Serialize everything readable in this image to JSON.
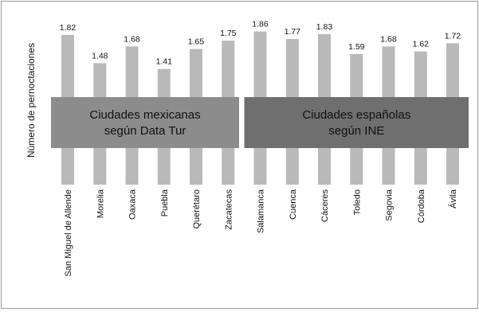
{
  "chart_data": {
    "type": "bar",
    "ylabel": "Número de pernoctaciones",
    "categories": [
      "San Miguel de Allende",
      "Morelia",
      "Oaxaca",
      "Puebla",
      "Querétaro",
      "Zacatecas",
      "Salamanca",
      "Cuenca",
      "Cáceres",
      "Toledo",
      "Segovia",
      "Córdoba",
      "Ávila"
    ],
    "values": [
      1.82,
      1.48,
      1.68,
      1.41,
      1.65,
      1.75,
      1.86,
      1.77,
      1.83,
      1.59,
      1.68,
      1.62,
      1.72
    ],
    "value_labels": [
      "1.82",
      "1.48",
      "1.68",
      "1.41",
      "1.65",
      "1.75",
      "1.86",
      "1.77",
      "1.83",
      "1.59",
      "1.68",
      "1.62",
      "1.72"
    ],
    "bar_color": "#b9b9b9",
    "groups": [
      {
        "lines": [
          "Ciudades mexicanas",
          "según Data Tur"
        ],
        "first_index": 0,
        "last_index": 5,
        "color": "#8c8c8c"
      },
      {
        "lines": [
          "Ciudades españolas",
          "según INE"
        ],
        "first_index": 6,
        "last_index": 12,
        "color": "#6f6f6f"
      }
    ]
  }
}
